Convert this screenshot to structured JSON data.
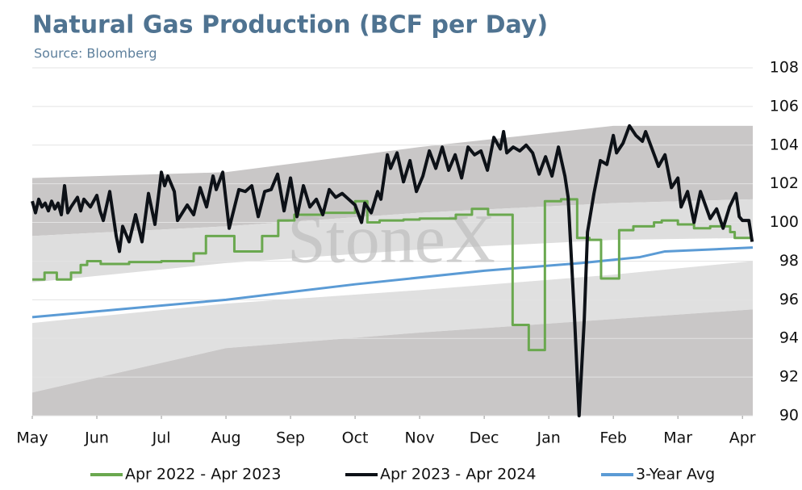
{
  "chart_data": {
    "type": "line",
    "title": "Natural Gas Production (BCF per Day)",
    "subtitle": "Source: Bloomberg",
    "watermark": "StoneX",
    "xlim": [
      0,
      11.16
    ],
    "xticks": [
      {
        "value": 0,
        "label": "May"
      },
      {
        "value": 1,
        "label": "Jun"
      },
      {
        "value": 2,
        "label": "Jul"
      },
      {
        "value": 3,
        "label": "Aug"
      },
      {
        "value": 4,
        "label": "Sep"
      },
      {
        "value": 5,
        "label": "Oct"
      },
      {
        "value": 6,
        "label": "Nov"
      },
      {
        "value": 7,
        "label": "Dec"
      },
      {
        "value": 8,
        "label": "Jan"
      },
      {
        "value": 9,
        "label": "Feb"
      },
      {
        "value": 10,
        "label": "Mar"
      },
      {
        "value": 11,
        "label": "Apr"
      }
    ],
    "ylim": [
      90,
      108
    ],
    "yticks": [
      90,
      92,
      94,
      96,
      98,
      100,
      102,
      104,
      106,
      108
    ],
    "grid": true,
    "band_x": [
      0,
      3,
      6,
      9,
      11.16
    ],
    "bands": [
      {
        "color": "#c9c7c7",
        "lower": [
          99.3,
          99.8,
          100.5,
          101,
          101.2
        ],
        "upper": [
          102.3,
          102.6,
          103.9,
          105,
          105
        ]
      },
      {
        "color": "#dedede",
        "lower": [
          96.9,
          97.9,
          98.6,
          99.1,
          99.2
        ],
        "upper": [
          99.3,
          99.8,
          100.5,
          101,
          101.2
        ]
      },
      {
        "color": "#e0e0e0",
        "lower": [
          91.2,
          93.5,
          94.3,
          95,
          95.5
        ],
        "upper": [
          94.8,
          95.8,
          96.5,
          97.3,
          98
        ]
      },
      {
        "color": "#c9c7c7",
        "upper": [
          91.2,
          93.5,
          94.3,
          95,
          95.5
        ]
      }
    ],
    "series": [
      {
        "name": "Apr 2022 - Apr 2023",
        "color": "#6aa84f",
        "step": true,
        "x": [
          0,
          0.19,
          0.38,
          0.6,
          0.75,
          0.85,
          1.06,
          1.5,
          2.0,
          2.5,
          2.69,
          3.13,
          3.56,
          3.81,
          4.06,
          4.5,
          5.0,
          5.19,
          5.38,
          5.75,
          6.0,
          6.56,
          6.81,
          7.06,
          7.44,
          7.69,
          7.94,
          8.19,
          8.44,
          8.63,
          8.81,
          9.09,
          9.31,
          9.63,
          9.75,
          10.0,
          10.25,
          10.5,
          10.81,
          10.88,
          11.13
        ],
        "values": [
          97.05,
          97.4,
          97.05,
          97.4,
          97.8,
          98.0,
          97.85,
          97.95,
          98.0,
          98.4,
          99.3,
          98.5,
          99.3,
          100.1,
          100.4,
          100.5,
          101.1,
          100.0,
          100.1,
          100.15,
          100.2,
          100.4,
          100.7,
          100.4,
          94.7,
          93.4,
          101.1,
          101.2,
          99.2,
          99.1,
          97.1,
          99.6,
          99.8,
          100.0,
          100.1,
          99.9,
          99.7,
          99.8,
          99.5,
          99.2,
          99.2
        ]
      },
      {
        "name": "Apr 2023 - Apr 2024",
        "color": "#0d1117",
        "step": false,
        "x": [
          0,
          0.05,
          0.1,
          0.15,
          0.2,
          0.25,
          0.3,
          0.35,
          0.4,
          0.45,
          0.5,
          0.55,
          0.6,
          0.7,
          0.75,
          0.8,
          0.9,
          1.0,
          1.05,
          1.1,
          1.2,
          1.3,
          1.35,
          1.4,
          1.5,
          1.6,
          1.7,
          1.8,
          1.9,
          2.0,
          2.05,
          2.1,
          2.2,
          2.25,
          2.4,
          2.5,
          2.6,
          2.7,
          2.8,
          2.85,
          2.95,
          3.05,
          3.2,
          3.3,
          3.4,
          3.5,
          3.6,
          3.7,
          3.8,
          3.9,
          4.0,
          4.1,
          4.2,
          4.3,
          4.4,
          4.5,
          4.6,
          4.7,
          4.8,
          4.9,
          5.0,
          5.1,
          5.15,
          5.25,
          5.35,
          5.4,
          5.5,
          5.55,
          5.65,
          5.75,
          5.85,
          5.95,
          6.05,
          6.15,
          6.25,
          6.35,
          6.45,
          6.55,
          6.65,
          6.75,
          6.85,
          6.95,
          7.05,
          7.15,
          7.25,
          7.3,
          7.35,
          7.45,
          7.55,
          7.65,
          7.75,
          7.85,
          7.95,
          8.05,
          8.15,
          8.25,
          8.3,
          8.4,
          8.47,
          8.55,
          8.6,
          8.7,
          8.8,
          8.9,
          9.0,
          9.05,
          9.15,
          9.25,
          9.35,
          9.45,
          9.5,
          9.6,
          9.7,
          9.8,
          9.9,
          10.0,
          10.05,
          10.15,
          10.25,
          10.35,
          10.5,
          10.6,
          10.7,
          10.8,
          10.9,
          10.95,
          11.0,
          11.1,
          11.15
        ],
        "values": [
          101.1,
          100.5,
          101.2,
          100.8,
          101.0,
          100.6,
          101.1,
          100.7,
          101.0,
          100.4,
          101.9,
          100.5,
          100.8,
          101.3,
          100.6,
          101.2,
          100.8,
          101.4,
          100.6,
          100.1,
          101.6,
          99.3,
          98.5,
          99.8,
          99.0,
          100.4,
          99.0,
          101.5,
          99.9,
          102.6,
          101.9,
          102.4,
          101.6,
          100.1,
          100.9,
          100.4,
          101.8,
          100.8,
          102.4,
          101.7,
          102.6,
          99.7,
          101.7,
          101.6,
          101.9,
          100.3,
          101.6,
          101.7,
          102.5,
          100.6,
          102.3,
          100.3,
          101.9,
          100.8,
          101.2,
          100.4,
          101.7,
          101.3,
          101.5,
          101.2,
          100.9,
          100.0,
          101.0,
          100.5,
          101.6,
          101.2,
          103.5,
          102.8,
          103.6,
          102.1,
          103.2,
          101.6,
          102.4,
          103.7,
          102.8,
          103.9,
          102.7,
          103.5,
          102.3,
          103.9,
          103.5,
          103.7,
          102.7,
          104.4,
          103.8,
          104.7,
          103.6,
          103.9,
          103.7,
          104.0,
          103.6,
          102.5,
          103.4,
          102.4,
          103.9,
          102.4,
          101.3,
          95.0,
          90.0,
          95.0,
          99.5,
          101.5,
          103.2,
          103.0,
          104.5,
          103.6,
          104.1,
          105.0,
          104.5,
          104.2,
          104.7,
          103.8,
          102.9,
          103.5,
          101.8,
          102.3,
          100.8,
          101.6,
          100.0,
          101.6,
          100.2,
          100.7,
          99.7,
          100.8,
          101.5,
          100.3,
          100.1,
          100.1,
          99.0
        ]
      },
      {
        "name": "3-Year Avg",
        "color": "#5b9bd5",
        "step": false,
        "x": [
          0,
          3,
          5,
          7,
          8.5,
          9.4,
          9.8,
          11.16
        ],
        "values": [
          95.1,
          96.0,
          96.8,
          97.5,
          97.9,
          98.2,
          98.5,
          98.7
        ]
      }
    ]
  }
}
